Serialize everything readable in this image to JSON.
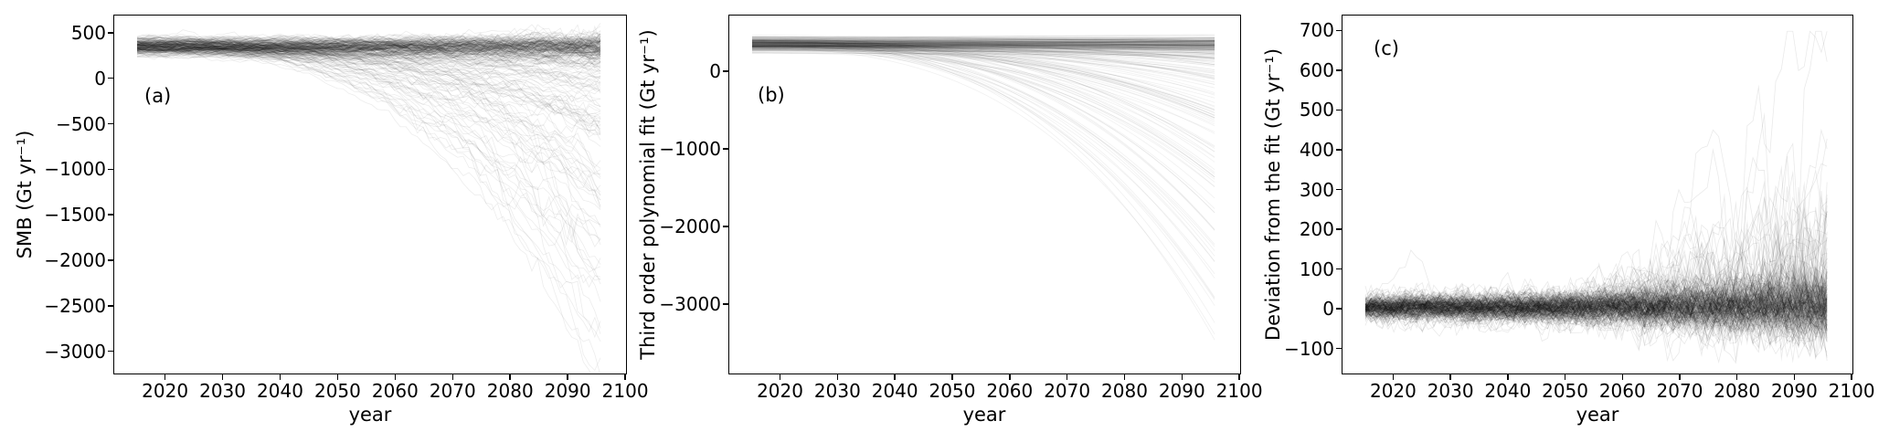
{
  "figure": {
    "background": "#ffffff",
    "line_color": "#000000",
    "description": "Three-panel ensemble line figure: (a) SMB time series, (b) third order polynomial fits, (c) deviations from the fit, for hundreds of semi-transparent black ensemble trajectories spanning years 2015-2096."
  },
  "chart_data": [
    {
      "panel": "(a)",
      "type": "line",
      "xlabel": "year",
      "ylabel": "SMB (Gt yr⁻¹)",
      "xlim": [
        2011,
        2100.3
      ],
      "ylim": [
        -3255,
        700
      ],
      "x_ticks": [
        2020,
        2030,
        2040,
        2050,
        2060,
        2070,
        2080,
        2090,
        2100
      ],
      "x_tick_labels": [
        "2020",
        "2030",
        "2040",
        "2050",
        "2060",
        "2070",
        "2080",
        "2090",
        "2100"
      ],
      "y_ticks": [
        500,
        0,
        -500,
        -1000,
        -1500,
        -2000,
        -2500,
        -3000
      ],
      "y_tick_labels": [
        "500",
        "0",
        "−500",
        "−1000",
        "−1500",
        "−2000",
        "−2500",
        "−3000"
      ],
      "grid": false,
      "legend": "none",
      "series_description": "Hundreds of overlapping thin black semi-transparent annual SMB trajectories (2015-2096); dense dark band stays near 250-480 Gt/yr while a tail of members collapses, the lowest reaching about -3050 Gt/yr by 2096.",
      "envelope": {
        "years": [
          2015,
          2025,
          2035,
          2045,
          2055,
          2065,
          2075,
          2085,
          2095
        ],
        "min": [
          260,
          230,
          90,
          -60,
          -300,
          -700,
          -1250,
          -2000,
          -3050
        ],
        "median": [
          370,
          370,
          365,
          360,
          355,
          350,
          340,
          330,
          310
        ],
        "max": [
          480,
          490,
          480,
          480,
          480,
          480,
          475,
          470,
          460
        ]
      }
    },
    {
      "panel": "(b)",
      "type": "line",
      "xlabel": "year",
      "ylabel": "Third order polynomial fit (Gt yr⁻¹)",
      "xlim": [
        2011,
        2100.3
      ],
      "ylim": [
        -3905,
        730
      ],
      "x_ticks": [
        2020,
        2030,
        2040,
        2050,
        2060,
        2070,
        2080,
        2090,
        2100
      ],
      "x_tick_labels": [
        "2020",
        "2030",
        "2040",
        "2050",
        "2060",
        "2070",
        "2080",
        "2090",
        "2100"
      ],
      "y_ticks": [
        0,
        -1000,
        -2000,
        -3000
      ],
      "y_tick_labels": [
        "0",
        "−1000",
        "−2000",
        "−3000"
      ],
      "grid": false,
      "legend": "none",
      "series_description": "Smooth third-order polynomial fit of each ensemble member; tight dark band near 300-450 Gt/yr with a fan of curves bending down smoothly, the lowest reaching about -3700 Gt/yr by 2096.",
      "envelope": {
        "years": [
          2015,
          2025,
          2035,
          2045,
          2055,
          2065,
          2075,
          2085,
          2095
        ],
        "min": [
          250,
          180,
          60,
          -150,
          -450,
          -900,
          -1500,
          -2400,
          -3600
        ],
        "median": [
          370,
          368,
          365,
          360,
          355,
          350,
          340,
          330,
          315
        ],
        "max": [
          450,
          445,
          440,
          435,
          430,
          430,
          430,
          430,
          430
        ]
      }
    },
    {
      "panel": "(c)",
      "type": "line",
      "xlabel": "year",
      "ylabel": "Deviation from the fit (Gt yr⁻¹)",
      "xlim": [
        2011,
        2100.3
      ],
      "ylim": [
        -165,
        740
      ],
      "x_ticks": [
        2020,
        2030,
        2040,
        2050,
        2060,
        2070,
        2080,
        2090,
        2100
      ],
      "x_tick_labels": [
        "2020",
        "2030",
        "2040",
        "2050",
        "2060",
        "2070",
        "2080",
        "2090",
        "2100"
      ],
      "y_ticks": [
        700,
        600,
        500,
        400,
        300,
        200,
        100,
        0,
        -100
      ],
      "y_tick_labels": [
        "700",
        "600",
        "500",
        "400",
        "300",
        "200",
        "100",
        "0",
        "−100"
      ],
      "grid": false,
      "legend": "none",
      "series_description": "Residuals (member minus its fit): noisy black band around 0 +/- 50 Gt/yr, widening after 2060 with large positive excursions reaching about +690 Gt/yr near 2090-2096; minimum around -110 Gt/yr; one early excursion peaks near +160 around 2023.",
      "envelope": {
        "years": [
          2015,
          2025,
          2035,
          2045,
          2055,
          2065,
          2075,
          2085,
          2095
        ],
        "min": [
          -45,
          -60,
          -70,
          -65,
          -90,
          -80,
          -85,
          -95,
          -110
        ],
        "median": [
          10,
          10,
          10,
          10,
          10,
          10,
          10,
          10,
          10
        ],
        "max": [
          75,
          165,
          120,
          160,
          210,
          260,
          420,
          620,
          690
        ]
      }
    }
  ]
}
